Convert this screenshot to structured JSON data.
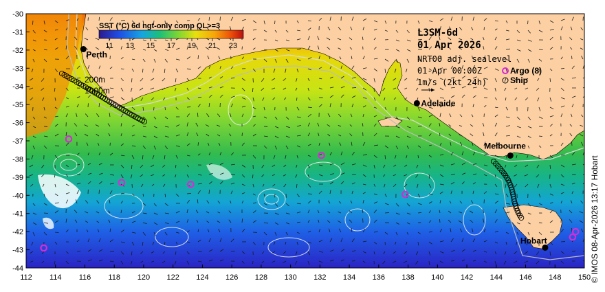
{
  "map": {
    "product_title": "L3SM-6d",
    "date": "01 Apr 2026",
    "sealevel_label": "NRT00 adj. sealevel",
    "sealevel_time": "01-Apr 00:00Z",
    "current_scale": "1m/s (2kt 24h)",
    "argo_label": "Argo (8)",
    "ship_label": "Ship",
    "contour_labels": [
      "200m",
      "1000m"
    ],
    "colorbar": {
      "title": "SST (°C) 6d ngt-only comp QL>=3",
      "ticks": [
        "11",
        "13",
        "15",
        "17",
        "19",
        "21",
        "23"
      ],
      "range": [
        10,
        24
      ]
    },
    "credit": "© IMOS 08-Apr-2026 13:17 Hobart",
    "axes": {
      "lon_ticks": [
        "112",
        "114",
        "116",
        "118",
        "120",
        "122",
        "124",
        "126",
        "128",
        "130",
        "132",
        "134",
        "136",
        "138",
        "140",
        "142",
        "144",
        "146",
        "148",
        "150"
      ],
      "lat_ticks": [
        "-30",
        "-31",
        "-32",
        "-33",
        "-34",
        "-35",
        "-36",
        "-37",
        "-38",
        "-39",
        "-40",
        "-41",
        "-42",
        "-43",
        "-44"
      ],
      "lon_range": [
        112,
        150
      ],
      "lat_range": [
        -44,
        -30
      ]
    },
    "places": [
      {
        "name": "Perth",
        "lon": 115.9,
        "lat": -31.95
      },
      {
        "name": "Adelaide",
        "lon": 138.6,
        "lat": -34.93
      },
      {
        "name": "Melbourne",
        "lon": 144.96,
        "lat": -37.81
      },
      {
        "name": "Hobart",
        "lon": 147.33,
        "lat": -42.88
      }
    ],
    "argo_floats": [
      {
        "lon": 114.9,
        "lat": -36.9
      },
      {
        "lon": 118.5,
        "lat": -39.3
      },
      {
        "lon": 123.2,
        "lat": -39.4
      },
      {
        "lon": 132.1,
        "lat": -37.8
      },
      {
        "lon": 137.8,
        "lat": -39.95
      },
      {
        "lon": 113.2,
        "lat": -42.9
      },
      {
        "lon": 149.4,
        "lat": -42.0
      },
      {
        "lon": 149.2,
        "lat": -42.3
      }
    ],
    "colors": {
      "land": "#fcd0a3",
      "argo": "#d62bd6",
      "ship_track": "#000000"
    }
  }
}
